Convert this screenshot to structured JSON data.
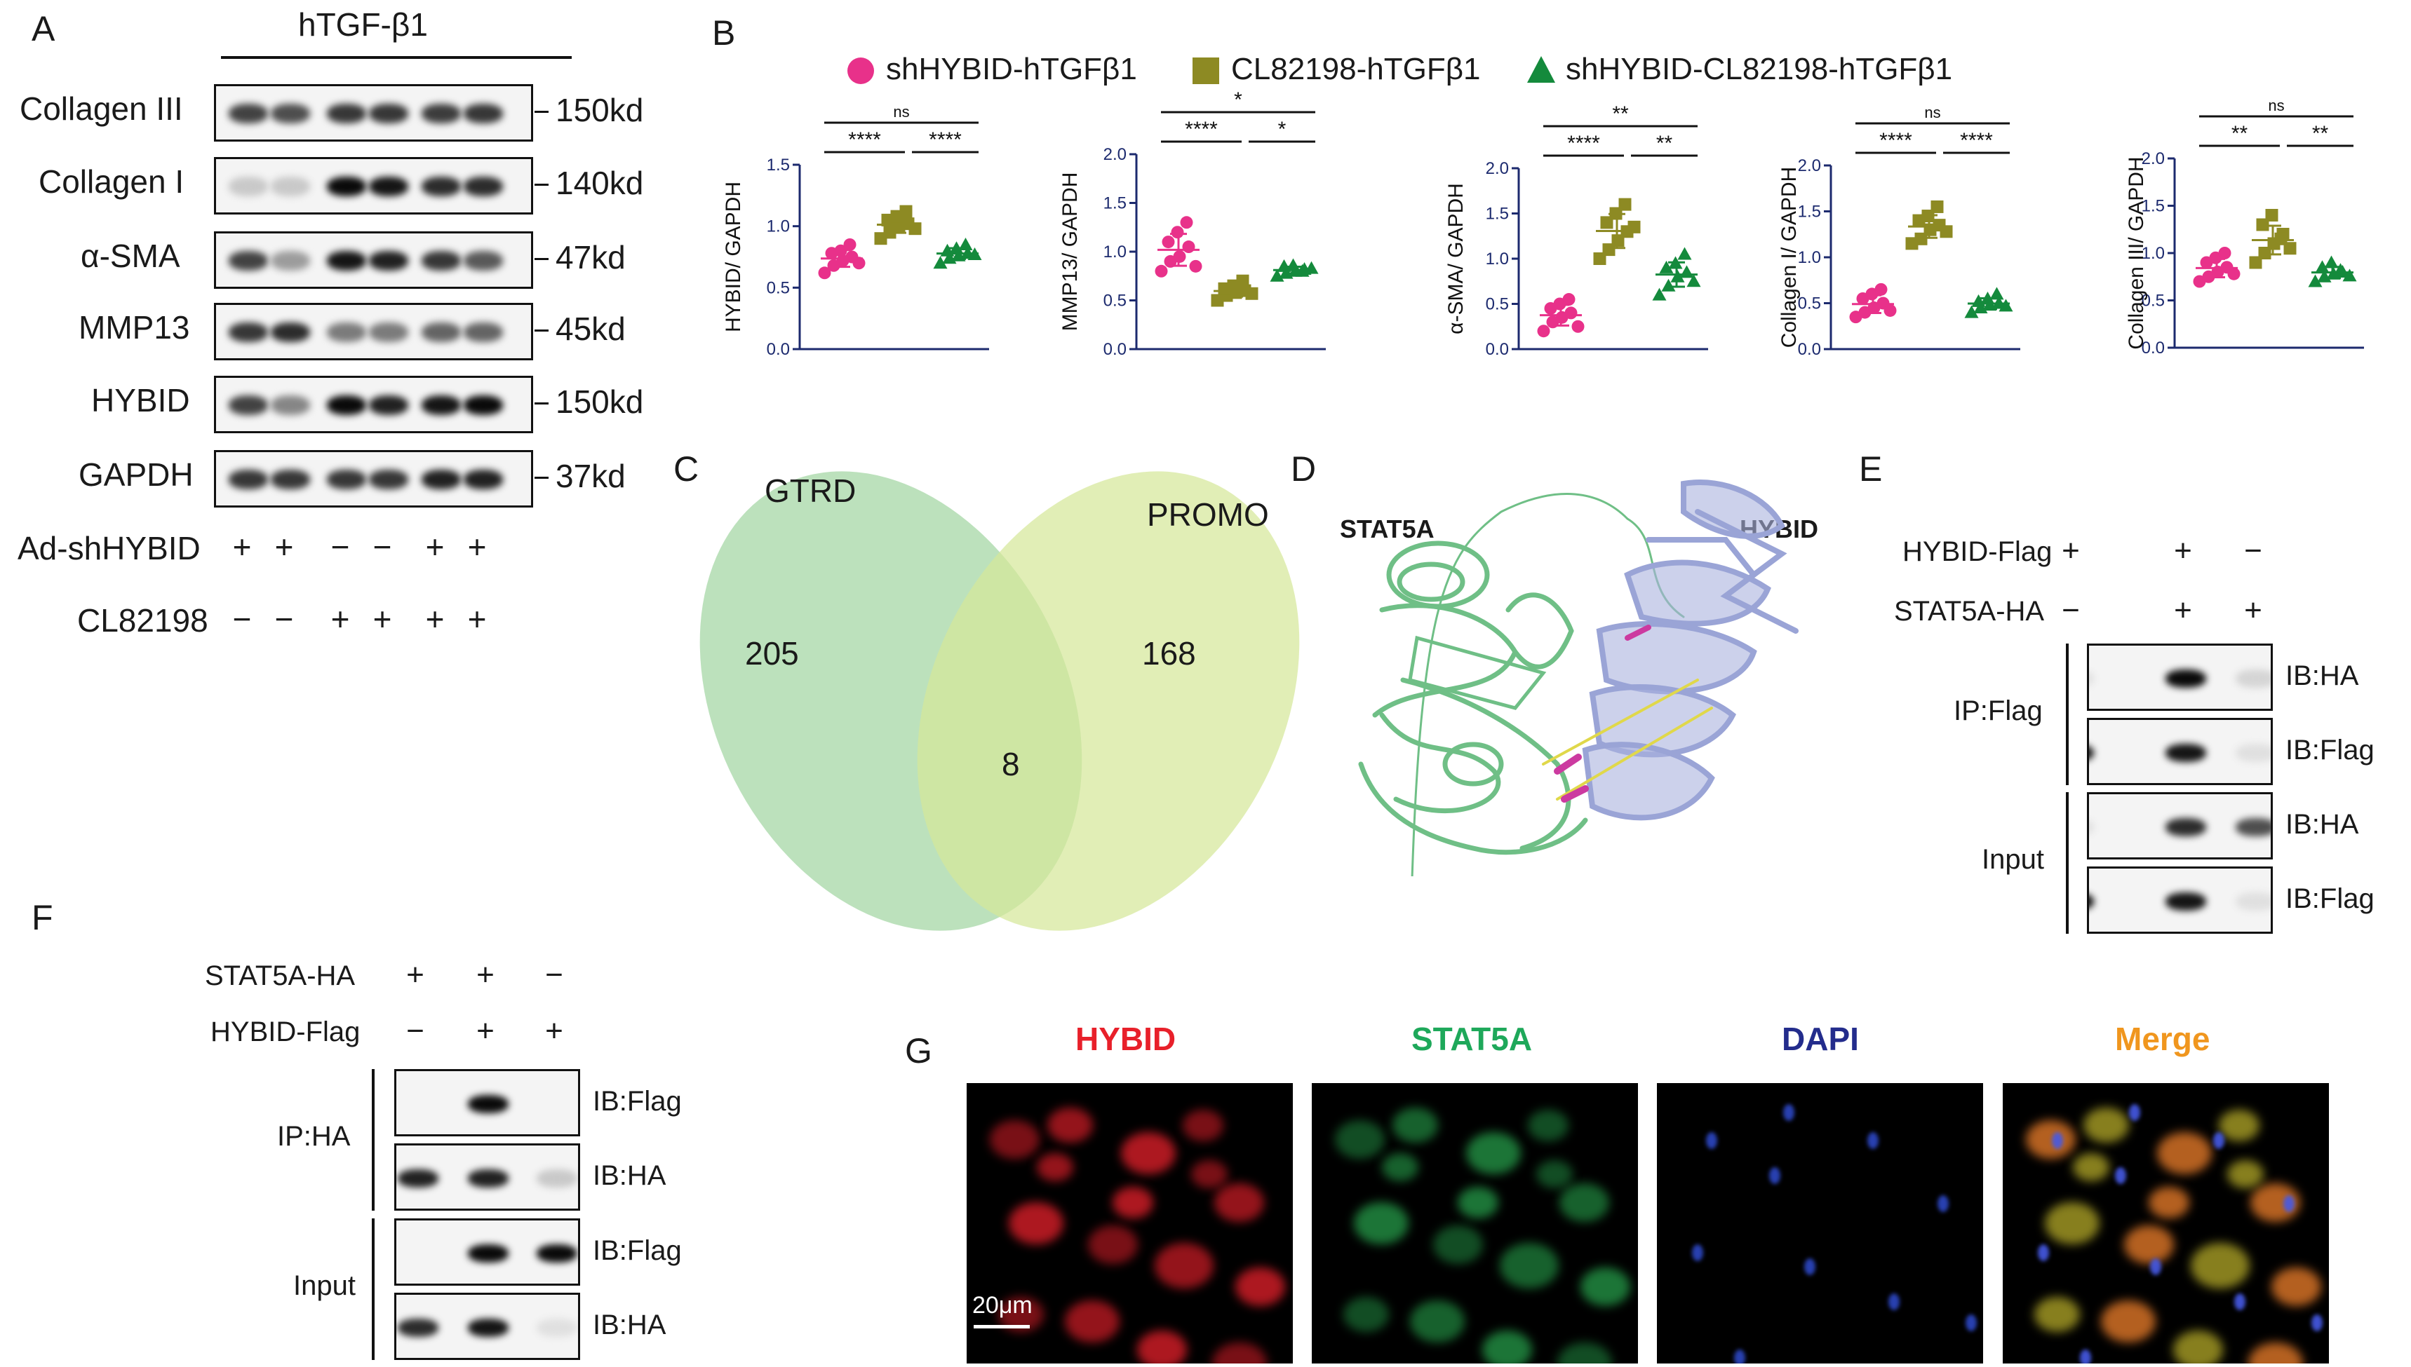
{
  "panelA": {
    "label": "A",
    "header": "hTGF-β1",
    "rows": [
      {
        "protein": "Collagen III",
        "size": "150kd",
        "intens": [
          0.75,
          0.7,
          0.8,
          0.8,
          0.78,
          0.8
        ]
      },
      {
        "protein": "Collagen I",
        "size": "140kd",
        "intens": [
          0.15,
          0.15,
          1.0,
          0.95,
          0.85,
          0.85
        ]
      },
      {
        "protein": "α-SMA",
        "size": "47kd",
        "intens": [
          0.75,
          0.35,
          0.95,
          0.9,
          0.8,
          0.65
        ]
      },
      {
        "protein": "MMP13",
        "size": "45kd",
        "intens": [
          0.8,
          0.85,
          0.5,
          0.5,
          0.6,
          0.6
        ]
      },
      {
        "protein": "HYBID",
        "size": "150kd",
        "intens": [
          0.75,
          0.45,
          1.0,
          0.9,
          0.95,
          1.0
        ]
      },
      {
        "protein": "GAPDH",
        "size": "37kd",
        "intens": [
          0.8,
          0.8,
          0.8,
          0.8,
          0.9,
          0.9
        ]
      }
    ],
    "treatments": [
      {
        "name": "Ad-shHYBID",
        "signs": [
          "+",
          "+",
          "−",
          "−",
          "+",
          "+"
        ]
      },
      {
        "name": "CL82198",
        "signs": [
          "−",
          "−",
          "+",
          "+",
          "+",
          "+"
        ]
      }
    ]
  },
  "panelB": {
    "label": "B",
    "legend": [
      {
        "name": "shHYBID-hTGFβ1",
        "color": "#e8318a",
        "shape": "circle"
      },
      {
        "name": "CL82198-hTGFβ1",
        "color": "#8d8a23",
        "shape": "square"
      },
      {
        "name": "shHYBID-CL82198-hTGFβ1",
        "color": "#148a3c",
        "shape": "triangle"
      }
    ]
  },
  "chart_data": [
    {
      "type": "scatter",
      "ylabel": "HYBID/ GAPDH",
      "ylim": [
        0,
        1.5
      ],
      "yticks": [
        "0.0",
        "0.5",
        "1.0",
        "1.5"
      ],
      "series": [
        {
          "name": "shHYBID-hTGFβ1",
          "values": [
            0.62,
            0.68,
            0.72,
            0.75,
            0.78,
            0.8,
            0.85,
            0.7
          ]
        },
        {
          "name": "CL82198-hTGFβ1",
          "values": [
            0.9,
            0.95,
            1.0,
            1.02,
            1.05,
            1.08,
            1.12,
            0.98
          ]
        },
        {
          "name": "shHYBID-CL82198-hTGFβ1",
          "values": [
            0.7,
            0.74,
            0.76,
            0.78,
            0.8,
            0.82,
            0.85,
            0.77
          ]
        }
      ],
      "sig": [
        {
          "pair": [
            0,
            1
          ],
          "label": "****"
        },
        {
          "pair": [
            1,
            2
          ],
          "label": "****"
        },
        {
          "pair": [
            0,
            2
          ],
          "label": "ns"
        }
      ]
    },
    {
      "type": "scatter",
      "ylabel": "MMP13/ GAPDH",
      "ylim": [
        0,
        2.0
      ],
      "yticks": [
        "0.0",
        "0.5",
        "1.0",
        "1.5",
        "2.0"
      ],
      "series": [
        {
          "name": "shHYBID-hTGFβ1",
          "values": [
            0.8,
            0.9,
            0.95,
            1.05,
            1.1,
            1.2,
            1.3,
            0.85
          ]
        },
        {
          "name": "CL82198-hTGFβ1",
          "values": [
            0.5,
            0.55,
            0.58,
            0.6,
            0.62,
            0.65,
            0.7,
            0.57
          ]
        },
        {
          "name": "shHYBID-CL82198-hTGFβ1",
          "values": [
            0.75,
            0.78,
            0.8,
            0.82,
            0.85,
            0.86,
            0.8,
            0.83
          ]
        }
      ],
      "sig": [
        {
          "pair": [
            0,
            1
          ],
          "label": "****"
        },
        {
          "pair": [
            1,
            2
          ],
          "label": "*"
        },
        {
          "pair": [
            0,
            2
          ],
          "label": "*"
        }
      ]
    },
    {
      "type": "scatter",
      "ylabel": "α-SMA/ GAPDH",
      "ylim": [
        0,
        2.0
      ],
      "yticks": [
        "0.0",
        "0.5",
        "1.0",
        "1.5",
        "2.0"
      ],
      "series": [
        {
          "name": "shHYBID-hTGFβ1",
          "values": [
            0.2,
            0.3,
            0.35,
            0.4,
            0.45,
            0.5,
            0.55,
            0.25
          ]
        },
        {
          "name": "CL82198-hTGFβ1",
          "values": [
            1.0,
            1.1,
            1.2,
            1.3,
            1.4,
            1.5,
            1.6,
            1.35
          ]
        },
        {
          "name": "shHYBID-CL82198-hTGFβ1",
          "values": [
            0.6,
            0.7,
            0.8,
            0.85,
            0.9,
            0.95,
            1.05,
            0.75
          ]
        }
      ],
      "sig": [
        {
          "pair": [
            0,
            1
          ],
          "label": "****"
        },
        {
          "pair": [
            1,
            2
          ],
          "label": "**"
        },
        {
          "pair": [
            0,
            2
          ],
          "label": "**"
        }
      ]
    },
    {
      "type": "scatter",
      "ylabel": "Collagen I/ GAPDH",
      "ylim": [
        0,
        2.0
      ],
      "yticks": [
        "0.0",
        "0.5",
        "1.0",
        "1.5",
        "2.0"
      ],
      "series": [
        {
          "name": "shHYBID-hTGFβ1",
          "values": [
            0.35,
            0.4,
            0.45,
            0.5,
            0.55,
            0.6,
            0.65,
            0.42
          ]
        },
        {
          "name": "CL82198-hTGFβ1",
          "values": [
            1.15,
            1.2,
            1.3,
            1.35,
            1.4,
            1.45,
            1.55,
            1.28
          ]
        },
        {
          "name": "shHYBID-CL82198-hTGFβ1",
          "values": [
            0.4,
            0.45,
            0.48,
            0.5,
            0.52,
            0.55,
            0.6,
            0.47
          ]
        }
      ],
      "sig": [
        {
          "pair": [
            0,
            1
          ],
          "label": "****"
        },
        {
          "pair": [
            1,
            2
          ],
          "label": "****"
        },
        {
          "pair": [
            0,
            2
          ],
          "label": "ns"
        }
      ]
    },
    {
      "type": "scatter",
      "ylabel": "Collagen III/ GAPDH",
      "ylim": [
        0,
        2.0
      ],
      "yticks": [
        "0.0",
        "0.5",
        "1.0",
        "1.5",
        "2.0"
      ],
      "series": [
        {
          "name": "shHYBID-hTGFβ1",
          "values": [
            0.7,
            0.75,
            0.8,
            0.85,
            0.9,
            0.95,
            1.0,
            0.78
          ]
        },
        {
          "name": "CL82198-hTGFβ1",
          "values": [
            0.9,
            1.0,
            1.1,
            1.2,
            1.3,
            1.4,
            1.15,
            1.05
          ]
        },
        {
          "name": "shHYBID-CL82198-hTGFβ1",
          "values": [
            0.7,
            0.75,
            0.78,
            0.8,
            0.85,
            0.9,
            0.82,
            0.76
          ]
        }
      ],
      "sig": [
        {
          "pair": [
            0,
            1
          ],
          "label": "**"
        },
        {
          "pair": [
            1,
            2
          ],
          "label": "**"
        },
        {
          "pair": [
            0,
            2
          ],
          "label": "ns"
        }
      ]
    }
  ],
  "panelC": {
    "label": "C",
    "left_name": "GTRD",
    "right_name": "PROMO",
    "left_only": "205",
    "overlap": "8",
    "right_only": "168"
  },
  "panelD": {
    "label": "D",
    "left_protein": "STAT5A",
    "right_protein": "HYBID"
  },
  "panelE": {
    "label": "E",
    "conditions": [
      {
        "name": "HYBID-Flag",
        "signs": [
          "+",
          "+",
          "−"
        ]
      },
      {
        "name": "STAT5A-HA",
        "signs": [
          "−",
          "+",
          "+"
        ]
      }
    ],
    "groups": [
      {
        "name": "IP:Flag",
        "blots": [
          {
            "ib": "IB:HA",
            "intens": [
              0.05,
              1.0,
              0.1
            ]
          },
          {
            "ib": "IB:Flag",
            "intens": [
              0.95,
              0.95,
              0.05
            ]
          }
        ]
      },
      {
        "name": "Input",
        "blots": [
          {
            "ib": "IB:HA",
            "intens": [
              0.05,
              0.85,
              0.7
            ]
          },
          {
            "ib": "IB:Flag",
            "intens": [
              1.0,
              0.95,
              0.05
            ]
          }
        ]
      }
    ]
  },
  "panelF": {
    "label": "F",
    "conditions": [
      {
        "name": "STAT5A-HA",
        "signs": [
          "+",
          "+",
          "−"
        ]
      },
      {
        "name": "HYBID-Flag",
        "signs": [
          "−",
          "+",
          "+"
        ]
      }
    ],
    "groups": [
      {
        "name": "IP:HA",
        "blots": [
          {
            "ib": "IB:Flag",
            "intens": [
              0.0,
              1.0,
              0.0
            ]
          },
          {
            "ib": "IB:HA",
            "intens": [
              0.9,
              0.9,
              0.15
            ]
          }
        ]
      },
      {
        "name": "Input",
        "blots": [
          {
            "ib": "IB:Flag",
            "intens": [
              0.0,
              1.0,
              1.0
            ]
          },
          {
            "ib": "IB:HA",
            "intens": [
              0.85,
              0.95,
              0.05
            ]
          }
        ]
      }
    ]
  },
  "panelG": {
    "label": "G",
    "channels": [
      {
        "name": "HYBID",
        "color": "#e8202a"
      },
      {
        "name": "STAT5A",
        "color": "#1ea85a"
      },
      {
        "name": "DAPI",
        "color": "#232c8c"
      },
      {
        "name": "Merge",
        "color": "#f0961e"
      }
    ],
    "scalebar": "20μm"
  }
}
